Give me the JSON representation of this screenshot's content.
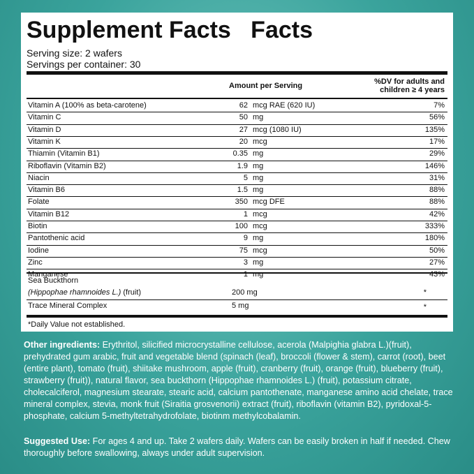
{
  "header": {
    "title": "Supplement Facts   Facts",
    "serving_size": "Serving size: 2 wafers",
    "servings_per_container": "Servings per container: 30"
  },
  "table": {
    "columns": {
      "amount": "Amount per Serving",
      "dv": [
        "%DV for adults and",
        "children ≥ 4 years"
      ]
    },
    "rows": [
      [
        "Vitamin A (100% as beta-carotene)",
        "62",
        "mcg RAE (620 IU)",
        "7%"
      ],
      [
        "Vitamin C",
        "50",
        "mg",
        "56%"
      ],
      [
        "Vitamin D",
        "27",
        "mcg (1080 IU)",
        "135%"
      ],
      [
        "Vitamin K",
        "20",
        "mcg",
        "17%"
      ],
      [
        "Thiamin (Vitamin B1)",
        "0.35",
        "mg",
        "29%"
      ],
      [
        "Riboflavin (Vitamin B2)",
        "1.9",
        "mg",
        "146%"
      ],
      [
        "Niacin",
        "5",
        "mg",
        "31%"
      ],
      [
        "Vitamin B6",
        "1.5",
        "mg",
        "88%"
      ],
      [
        "Folate",
        "350",
        "mcg DFE",
        "88%"
      ],
      [
        "Vitamin B12",
        "1",
        "mcg",
        "42%"
      ],
      [
        "Biotin",
        "100",
        "mcg",
        "333%"
      ],
      [
        "Pantothenic acid",
        "9",
        "mg",
        "180%"
      ],
      [
        "Iodine",
        "75",
        "mcg",
        "50%"
      ],
      [
        "Zinc",
        "3",
        "mg",
        "27%"
      ],
      [
        "Manganese",
        "1",
        "mg",
        "43%"
      ]
    ],
    "other_rows": [
      {
        "name": "Sea Buckthorn",
        "latin": "(Hippophae rhamnoides L.)",
        "part": " (fruit)",
        "amount": "200 mg",
        "dv": "*"
      },
      {
        "name": "Trace Mineral Complex",
        "amount": "5 mg",
        "dv": "*"
      }
    ],
    "footnote": "*Daily Value not established."
  },
  "other_ingredients": {
    "label": "Other ingredients:",
    "text": " Erythritol, silicified microcrystalline cellulose, acerola (Malpighia glabra L.)(fruit), prehydrated gum arabic, fruit and vegetable blend (spinach (leaf), broccoli (flower & stem), carrot (root), beet (entire plant), tomato (fruit), shiitake mushroom, apple (fruit), cranberry (fruit), orange (fruit), blueberry (fruit), strawberry (fruit)), natural flavor, sea buckthorn (Hippophae rhamnoides L.) (fruit), potassium citrate, cholecalciferol, magnesium stearate, stearic acid, calcium pantothenate, manganese amino acid chelate, trace mineral complex, stevia, monk fruit (Siraitia grosvenorii) extract (fruit), riboflavin (vitamin B2), pyridoxal-5-phosphate, calcium 5-methyltetrahydrofolate, biotinm methylcobalamin."
  },
  "suggested_use": {
    "label": "Suggested Use:",
    "text": " For ages 4 and up. Take 2 wafers daily. Wafers can be easily broken in half if needed. Chew thoroughly before swallowing, always under adult supervision."
  }
}
